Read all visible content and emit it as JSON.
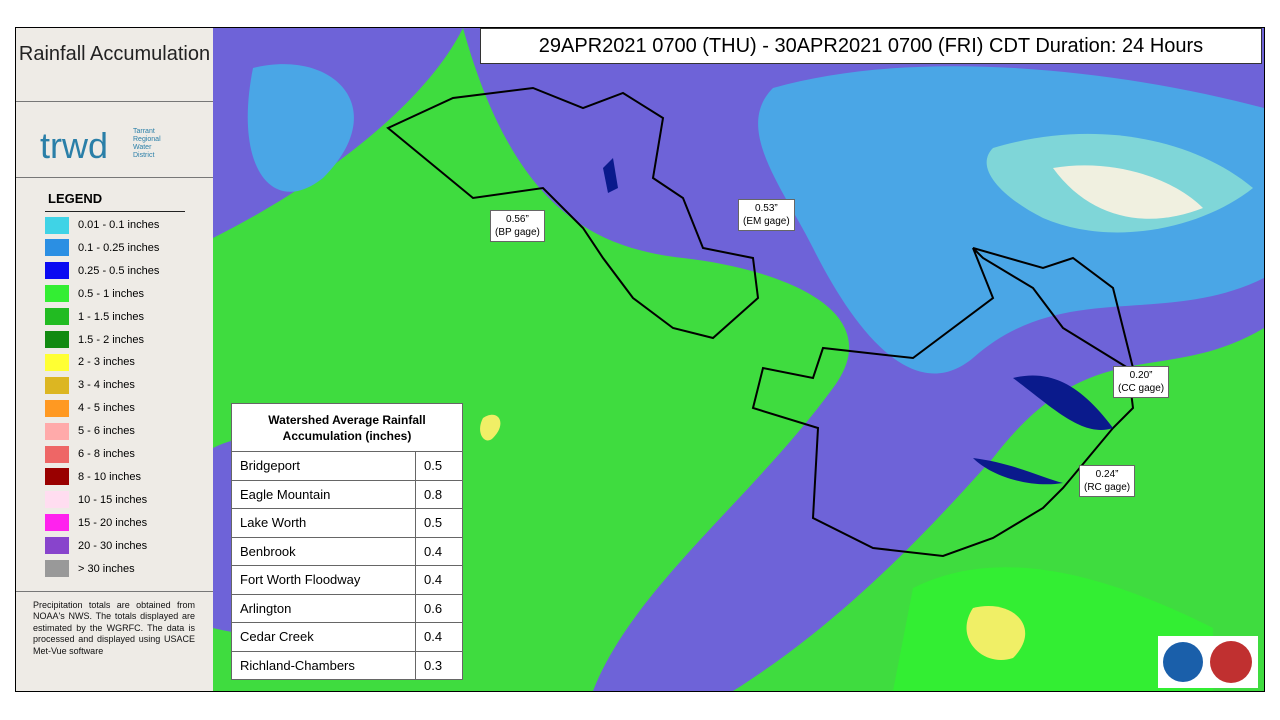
{
  "sidebar": {
    "title": "Rainfall Accumulation",
    "logo": {
      "name": "trwd",
      "subtitle": [
        "Tarrant",
        "Regional",
        "Water",
        "District"
      ]
    },
    "legend": {
      "title": "LEGEND",
      "items": [
        {
          "label": "0.01 - 0.1 inches",
          "color": "#3fd3e6"
        },
        {
          "label": "0.1 - 0.25 inches",
          "color": "#2b8fe3"
        },
        {
          "label": "0.25 - 0.5 inches",
          "color": "#0a0af2"
        },
        {
          "label": "0.5 - 1 inches",
          "color": "#33ee33"
        },
        {
          "label": "1 - 1.5 inches",
          "color": "#22bb22"
        },
        {
          "label": "1.5 - 2 inches",
          "color": "#118a11"
        },
        {
          "label": "2 - 3 inches",
          "color": "#ffff33"
        },
        {
          "label": "3 - 4 inches",
          "color": "#dcb622"
        },
        {
          "label": "4 - 5 inches",
          "color": "#ff9922"
        },
        {
          "label": "5 - 6 inches",
          "color": "#ffaaaa"
        },
        {
          "label": "6 - 8 inches",
          "color": "#ee6666"
        },
        {
          "label": "8 - 10 inches",
          "color": "#990000"
        },
        {
          "label": "10 - 15 inches",
          "color": "#ffddf0"
        },
        {
          "label": "15 - 20 inches",
          "color": "#ff22ee"
        },
        {
          "label": "20 - 30 inches",
          "color": "#8844cc"
        },
        {
          "label": "> 30 inches",
          "color": "#999999"
        }
      ]
    },
    "note": "Precipitation totals are obtained from NOAA's NWS. The totals displayed are estimated by the WGRFC. The data is processed and displayed using USACE Met-Vue software"
  },
  "header": "29APR2021 0700 (THU) - 30APR2021 0700 (FRI) CDT Duration: 24 Hours",
  "table": {
    "title": "Watershed Average Rainfall Accumulation (inches)",
    "rows": [
      [
        "Bridgeport",
        0.5
      ],
      [
        "Eagle Mountain",
        0.8
      ],
      [
        "Lake Worth",
        0.5
      ],
      [
        "Benbrook",
        0.4
      ],
      [
        "Fort Worth  Floodway",
        0.4
      ],
      [
        "Arlington",
        0.6
      ],
      [
        "Cedar Creek",
        0.4
      ],
      [
        "Richland-Chambers",
        0.3
      ]
    ]
  },
  "callouts": [
    {
      "value": "0.56”",
      "label": "(BP gage)"
    },
    {
      "value": "0.53”",
      "label": "(EM gage)"
    },
    {
      "value": "0.20”",
      "label": "(CC gage)"
    },
    {
      "value": "0.24”",
      "label": "(RC gage)"
    }
  ]
}
